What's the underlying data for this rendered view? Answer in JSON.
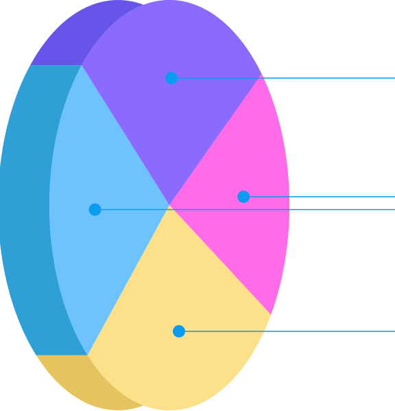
{
  "chart_data": {
    "type": "pie",
    "values": [
      27,
      20,
      28,
      25
    ],
    "colors": [
      "#8a6bfd",
      "#ff6be8",
      "#fde08a",
      "#6ec3fd"
    ],
    "side_colors": [
      "#6655e8",
      "#d24fc0",
      "#e5c35e",
      "#2ea0d6"
    ],
    "callout_color": "#0a9bf0"
  }
}
